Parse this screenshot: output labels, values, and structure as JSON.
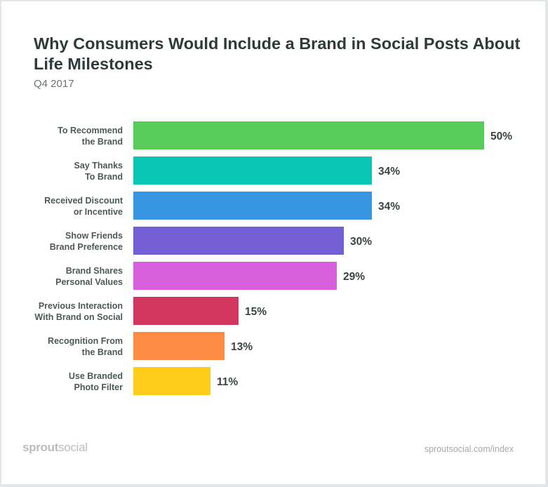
{
  "chart_data": {
    "type": "bar",
    "orientation": "horizontal",
    "title": "Why Consumers Would Include a Brand in Social Posts About Life Milestones",
    "subtitle": "Q4 2017",
    "categories": [
      [
        "To Recommend",
        "the Brand"
      ],
      [
        "Say Thanks",
        "To Brand"
      ],
      [
        "Received Discount",
        "or Incentive"
      ],
      [
        "Show Friends",
        "Brand Preference"
      ],
      [
        "Brand Shares",
        "Personal Values"
      ],
      [
        "Previous Interaction",
        "With Brand on Social"
      ],
      [
        "Recognition From",
        "the Brand"
      ],
      [
        "Use Branded",
        "Photo Filter"
      ]
    ],
    "values": [
      50,
      34,
      34,
      30,
      29,
      15,
      13,
      11
    ],
    "value_labels": [
      "50%",
      "34%",
      "34%",
      "30%",
      "29%",
      "15%",
      "13%",
      "11%"
    ],
    "colors": [
      "#59cb59",
      "#0ac6b4",
      "#3795e1",
      "#735ed6",
      "#d85fdd",
      "#d1365f",
      "#fe8a43",
      "#fecd1a"
    ],
    "xlim": [
      0,
      50
    ],
    "grid": false,
    "legend": "none"
  },
  "footer": {
    "logo_bold": "sprout",
    "logo_light": "social",
    "source": "sproutsocial.com/index"
  }
}
